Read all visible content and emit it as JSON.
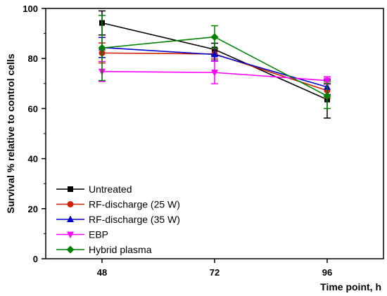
{
  "chart_data": {
    "type": "line",
    "title": "",
    "xlabel": "Time point, h",
    "ylabel": "Survival %  relative to control cells",
    "x": [
      48,
      72,
      96
    ],
    "xlim": [
      36,
      108
    ],
    "ylim": [
      0,
      100
    ],
    "yticks": [
      0,
      20,
      40,
      60,
      80,
      100
    ],
    "grid": false,
    "legend_position": "bottom-left",
    "series": [
      {
        "name": "Untreated",
        "color": "#000000",
        "marker": "square",
        "values": [
          94.2,
          83.6,
          63.6
        ],
        "errors": [
          4.8,
          2.5,
          7.4
        ]
      },
      {
        "name": "RF-discharge (25 W)",
        "color": "#cc2200",
        "marker": "circle",
        "values": [
          82.2,
          81.8,
          67.2
        ],
        "errors": [
          4.0,
          2.0,
          3.0
        ]
      },
      {
        "name": "RF-discharge (35 W)",
        "color": "#0000cc",
        "marker": "triangle-up",
        "values": [
          84.4,
          81.6,
          68.6
        ],
        "errors": [
          4.0,
          2.5,
          3.0
        ]
      },
      {
        "name": "EBP",
        "color": "#ff00ff",
        "marker": "triangle-down",
        "values": [
          74.8,
          74.4,
          71.2
        ],
        "errors": [
          4.0,
          4.5,
          1.5
        ]
      },
      {
        "name": "Hybrid plasma",
        "color": "#008000",
        "marker": "diamond",
        "values": [
          84.2,
          88.6,
          65.0
        ],
        "errors": [
          13.0,
          4.5,
          5.0
        ]
      }
    ]
  }
}
